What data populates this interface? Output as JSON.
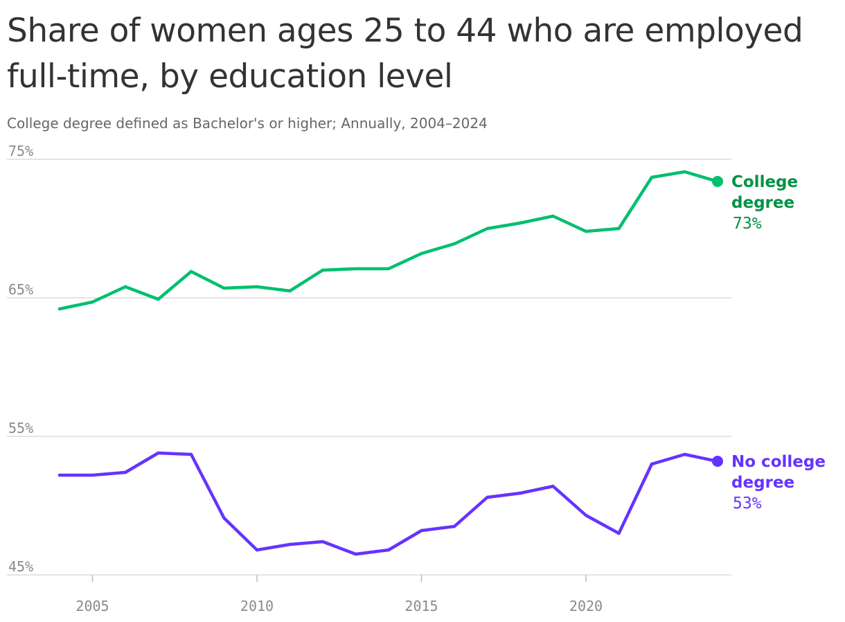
{
  "chart_data": {
    "type": "line",
    "title": "Share of women ages 25 to 44 who are employed full-time, by education level",
    "subtitle": "College degree defined as Bachelor's or higher; Annually, 2004–2024",
    "x": [
      2004,
      2005,
      2006,
      2007,
      2008,
      2009,
      2010,
      2011,
      2012,
      2013,
      2014,
      2015,
      2016,
      2017,
      2018,
      2019,
      2020,
      2021,
      2022,
      2023,
      2024
    ],
    "series": [
      {
        "name": "College degree",
        "label_lines": [
          "College",
          "degree"
        ],
        "end_label": "73%",
        "color": "#00bf6f",
        "label_color": "#009245",
        "values": [
          64.2,
          64.7,
          65.8,
          64.9,
          66.9,
          65.7,
          65.8,
          65.5,
          67.0,
          67.1,
          67.1,
          68.2,
          68.9,
          70.0,
          70.4,
          70.9,
          69.8,
          70.0,
          73.7,
          74.1,
          73.4
        ]
      },
      {
        "name": "No college degree",
        "label_lines": [
          "No college",
          "degree"
        ],
        "end_label": "53%",
        "color": "#6533ff",
        "label_color": "#6533ff",
        "values": [
          52.2,
          52.2,
          52.4,
          53.8,
          53.7,
          49.1,
          46.8,
          47.2,
          47.4,
          46.5,
          46.8,
          48.2,
          48.5,
          50.6,
          50.9,
          51.4,
          49.3,
          48.0,
          53.0,
          53.7,
          53.2
        ]
      }
    ],
    "xticks": [
      "2005",
      "2010",
      "2015",
      "2020"
    ],
    "yticks": [
      "45%",
      "55%",
      "65%",
      "75%"
    ],
    "ylim": [
      45,
      75
    ],
    "grid": true
  }
}
